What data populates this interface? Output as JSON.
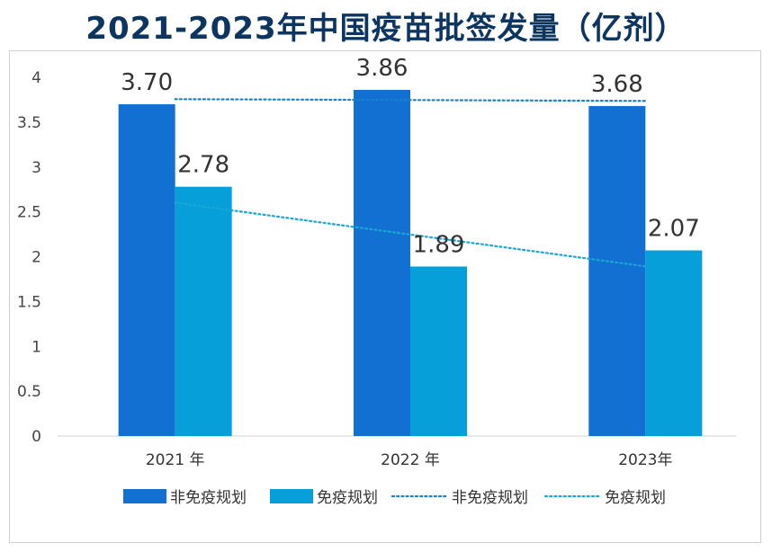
{
  "chart_data": {
    "type": "bar",
    "title": "2021-2023年中国疫苗批签发量（亿剂）",
    "categories": [
      "2021 年",
      "2022 年",
      "2023年"
    ],
    "series": [
      {
        "name": "非免疫规划",
        "values": [
          3.7,
          3.86,
          3.68
        ],
        "color": "#1170d2"
      },
      {
        "name": "免疫规划",
        "values": [
          2.78,
          1.89,
          2.07
        ],
        "color": "#069fda"
      }
    ],
    "trendlines": [
      {
        "name": "非免疫规划",
        "style": "dotted",
        "color": "#1a82c8"
      },
      {
        "name": "免疫规划",
        "style": "dotted",
        "color": "#1aa6d4"
      }
    ],
    "value_labels": [
      "3.70",
      "3.86",
      "3.68",
      "2.78",
      "1.89",
      "2.07"
    ],
    "y_ticks": [
      "0",
      "0.5",
      "1",
      "1.5",
      "2",
      "2.5",
      "3",
      "3.5",
      "4"
    ],
    "ylim": [
      0,
      4
    ],
    "grid": false,
    "legend_position": "bottom"
  }
}
